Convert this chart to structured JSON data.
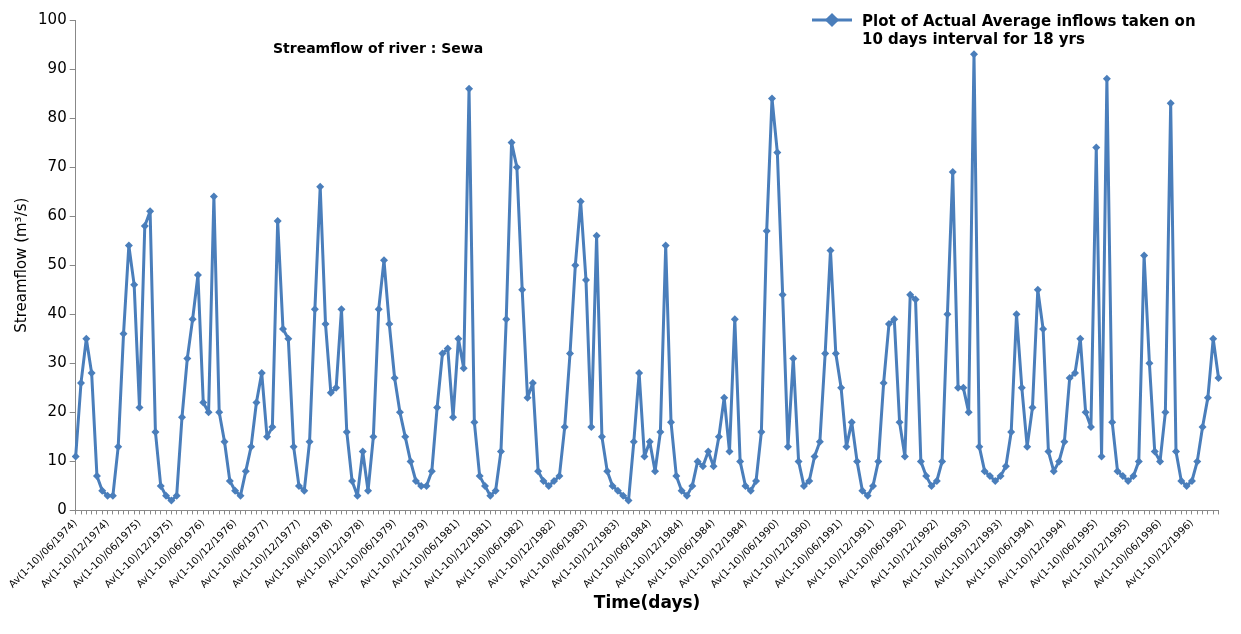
{
  "chart_data": {
    "type": "line",
    "title": "Streamflow of river : Sewa",
    "xlabel": "Time(days)",
    "ylabel": "Streamflow (m³/s)",
    "categories": [
      "Av(1-10)/06/1974)",
      null,
      null,
      null,
      null,
      null,
      "Av(1-10)/12/1974)",
      null,
      null,
      null,
      null,
      null,
      "Av(1-10)/06/1975)",
      null,
      null,
      null,
      null,
      null,
      "Av(1-10)/12/1975)",
      null,
      null,
      null,
      null,
      null,
      "Av(1-10)/06/1976)",
      null,
      null,
      null,
      null,
      null,
      "Av(1-10)/12/1976)",
      null,
      null,
      null,
      null,
      null,
      "Av(1-10)/06/1977)",
      null,
      null,
      null,
      null,
      null,
      "Av(1-10)/12/1977)",
      null,
      null,
      null,
      null,
      null,
      "Av(1-10)/06/1978)",
      null,
      null,
      null,
      null,
      null,
      "Av(1-10)/12/1978)",
      null,
      null,
      null,
      null,
      null,
      "Av(1-10)/06/1979)",
      null,
      null,
      null,
      null,
      null,
      "Av(1-10)/12/1979)",
      null,
      null,
      null,
      null,
      null,
      "Av(1-10)/06/1981)",
      null,
      null,
      null,
      null,
      null,
      "Av(1-10)/12/1981)",
      null,
      null,
      null,
      null,
      null,
      "Av(1-10)/06/1982)",
      null,
      null,
      null,
      null,
      null,
      "Av(1-10)/12/1982)",
      null,
      null,
      null,
      null,
      null,
      "Av(1-10)/06/1983)",
      null,
      null,
      null,
      null,
      null,
      "Av(1-10)/12/1983)",
      null,
      null,
      null,
      null,
      null,
      "Av(1-10)/06/1984)",
      null,
      null,
      null,
      null,
      null,
      "Av(1-10)/12/1984)",
      null,
      null,
      null,
      null,
      null,
      "Av(1-10)/06/1984)",
      null,
      null,
      null,
      null,
      null,
      "Av(1-10)/12/1984)",
      null,
      null,
      null,
      null,
      null,
      "Av(1-10)/06/1990)",
      null,
      null,
      null,
      null,
      null,
      "Av(1-10)/12/1990)",
      null,
      null,
      null,
      null,
      null,
      "Av(1-10)/06/1991)",
      null,
      null,
      null,
      null,
      null,
      "Av(1-10)/12/1991)",
      null,
      null,
      null,
      null,
      null,
      "Av(1-10)/06/1992)",
      null,
      null,
      null,
      null,
      null,
      "Av(1-10)/12/1992)",
      null,
      null,
      null,
      null,
      null,
      "Av(1-10)/06/1993)",
      null,
      null,
      null,
      null,
      null,
      "Av(1-10)/12/1993)",
      null,
      null,
      null,
      null,
      null,
      "Av(1-10)/06/1994)",
      null,
      null,
      null,
      null,
      null,
      "Av(1-10)/12/1994)",
      null,
      null,
      null,
      null,
      null,
      "Av(1-10)/06/1995)",
      null,
      null,
      null,
      null,
      null,
      "Av(1-10)/12/1995)",
      null,
      null,
      null,
      null,
      null,
      "Av(1-10)/06/1996)",
      null,
      null,
      null,
      null,
      null,
      "Av(1-10)/12/1996)",
      null,
      null,
      null,
      null,
      null
    ],
    "series": [
      {
        "name": "Plot of Actual Average inflows taken on 10 days interval for 18 yrs",
        "color": "#4a7ebb",
        "values": [
          11,
          26,
          35,
          28,
          7,
          4,
          3,
          3,
          13,
          36,
          54,
          46,
          21,
          58,
          61,
          16,
          5,
          3,
          2,
          3,
          19,
          31,
          39,
          48,
          22,
          20,
          64,
          20,
          14,
          6,
          4,
          3,
          8,
          13,
          22,
          28,
          15,
          17,
          59,
          37,
          35,
          13,
          5,
          4,
          14,
          41,
          66,
          38,
          24,
          25,
          41,
          16,
          6,
          3,
          12,
          4,
          15,
          41,
          51,
          38,
          27,
          20,
          15,
          10,
          6,
          5,
          5,
          8,
          21,
          32,
          33,
          19,
          35,
          29,
          86,
          18,
          7,
          5,
          3,
          4,
          12,
          39,
          75,
          70,
          45,
          23,
          26,
          8,
          6,
          5,
          6,
          7,
          17,
          32,
          50,
          63,
          47,
          17,
          56,
          15,
          8,
          5,
          4,
          3,
          2,
          14,
          28,
          11,
          14,
          8,
          16,
          54,
          18,
          7,
          4,
          3,
          5,
          10,
          9,
          12,
          9,
          15,
          23,
          12,
          39,
          10,
          5,
          4,
          6,
          16,
          57,
          84,
          73,
          44,
          13,
          31,
          10,
          5,
          6,
          11,
          14,
          32,
          53,
          32,
          25,
          13,
          18,
          10,
          4,
          3,
          5,
          10,
          26,
          38,
          39,
          18,
          11,
          44,
          43,
          10,
          7,
          5,
          6,
          10,
          40,
          69,
          25,
          25,
          20,
          93,
          13,
          8,
          7,
          6,
          7,
          9,
          16,
          40,
          25,
          13,
          21,
          45,
          37,
          12,
          8,
          10,
          14,
          27,
          28,
          35,
          20,
          17,
          74,
          11,
          88,
          18,
          8,
          7,
          6,
          7,
          10,
          52,
          30,
          12,
          10,
          20,
          83,
          12,
          6,
          5,
          6,
          10,
          17,
          23,
          35,
          27
        ]
      }
    ],
    "ylim": [
      0,
      100
    ],
    "yticks": [
      0,
      10,
      20,
      30,
      40,
      50,
      60,
      70,
      80,
      90,
      100
    ],
    "grid": false,
    "legend": "top right",
    "marker": "diamond",
    "line_style": "solid"
  }
}
